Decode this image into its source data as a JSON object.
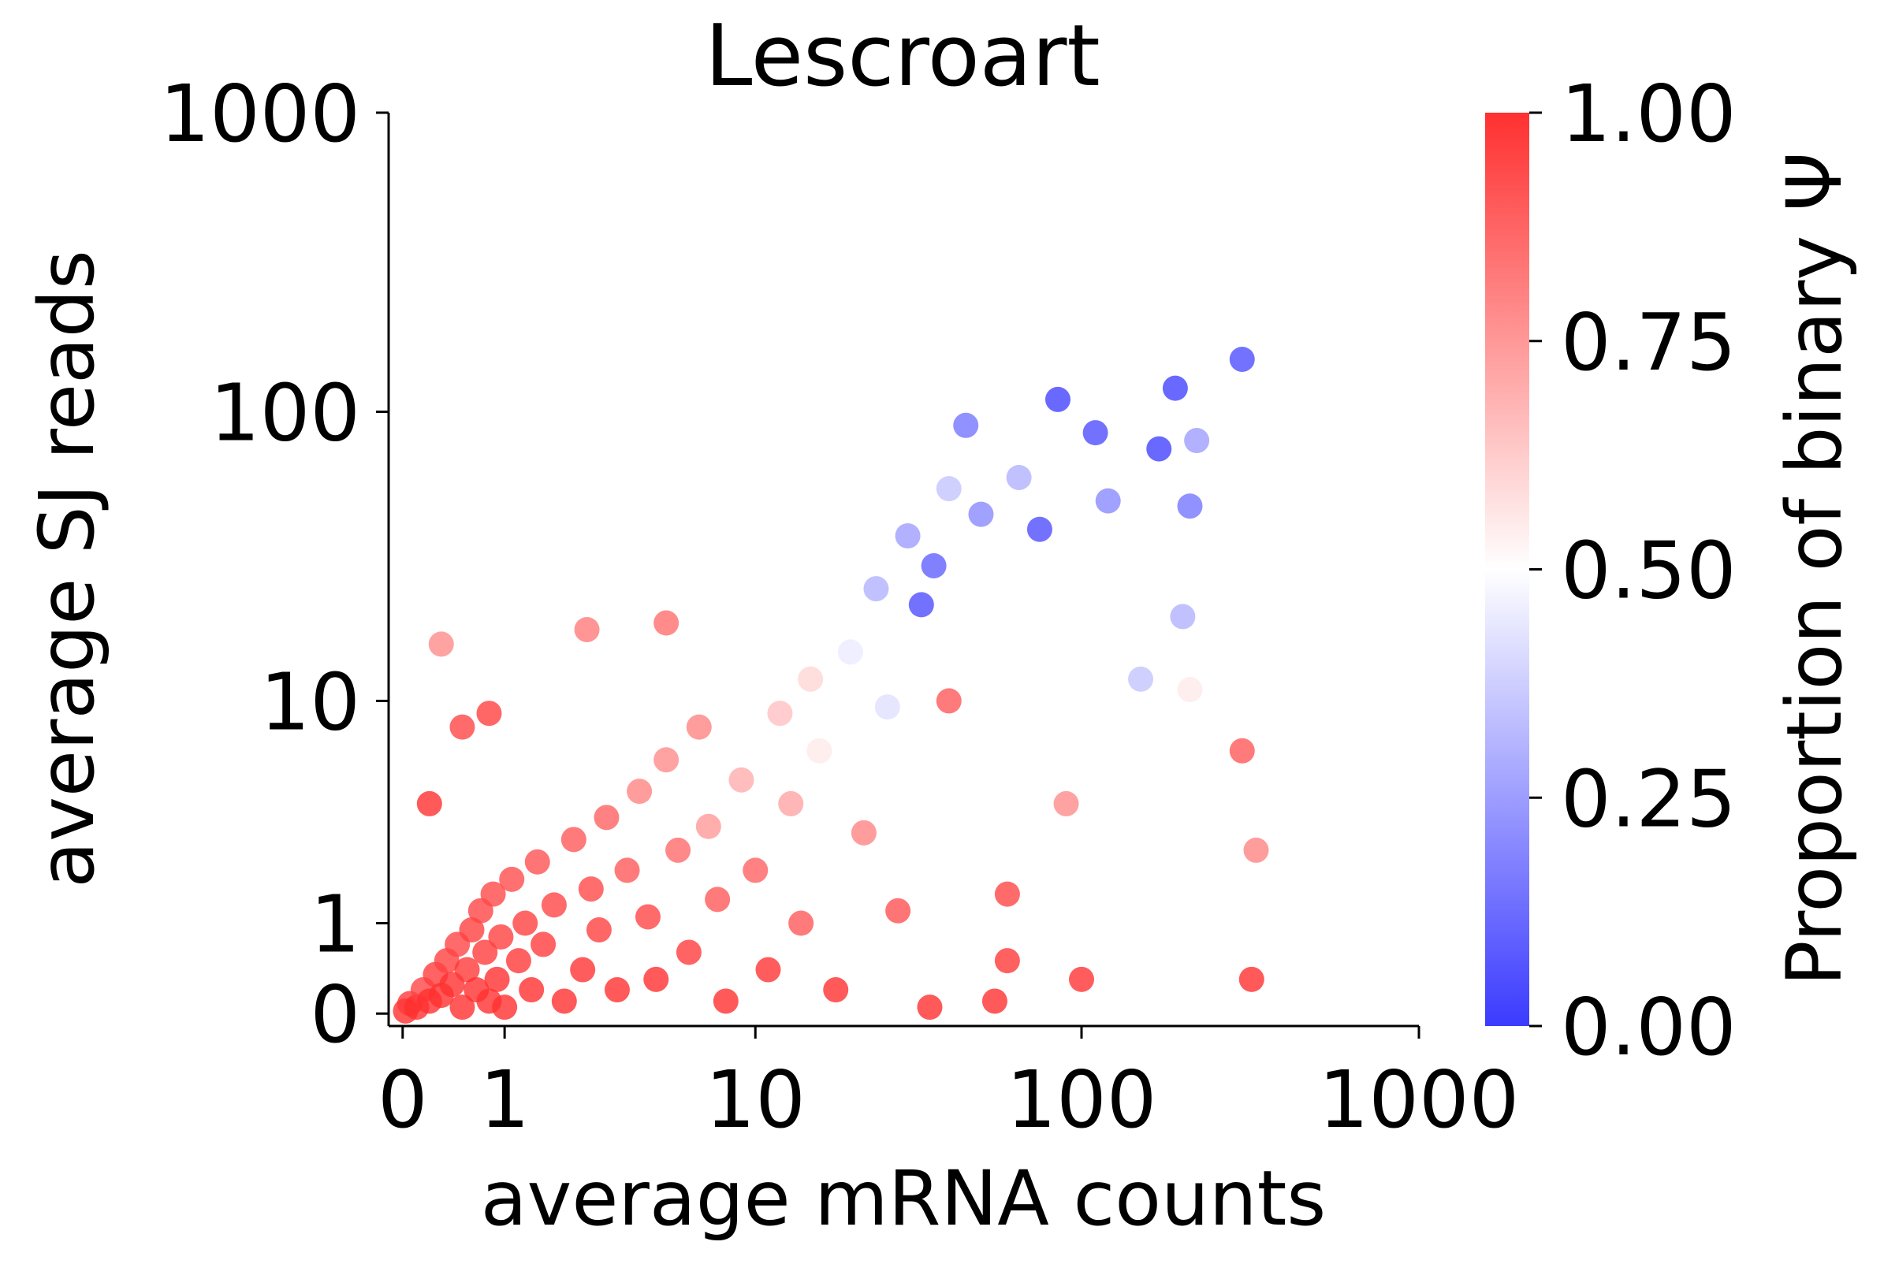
{
  "chart_data": {
    "type": "scatter",
    "title": "Lescroart",
    "xlabel": "average mRNA counts",
    "ylabel": "average SJ reads",
    "x_scale": "symlog",
    "y_scale": "symlog",
    "xlim": [
      -0.1,
      1000
    ],
    "ylim": [
      -0.1,
      1000
    ],
    "x_ticks": [
      0,
      1,
      10,
      100,
      1000
    ],
    "y_ticks": [
      0,
      1,
      10,
      100,
      1000
    ],
    "x_tick_labels": [
      "0",
      "1",
      "10",
      "100",
      "1000"
    ],
    "y_tick_labels": [
      "0",
      "1",
      "10",
      "100",
      "1000"
    ],
    "grid": false,
    "colorbar": {
      "label": "Proportion of binary Ψ",
      "range": [
        0,
        1
      ],
      "ticks": [
        0,
        0.25,
        0.5,
        0.75,
        1.0
      ],
      "tick_labels": [
        "0.00",
        "0.25",
        "0.50",
        "0.75",
        "1.00"
      ],
      "colormap": "bwr",
      "low_color": "#3b3bff",
      "mid_color": "#ffffff",
      "high_color": "#ff3030"
    },
    "points": [
      [
        0.02,
        0.02,
        1.0
      ],
      [
        0.05,
        0.08,
        0.98
      ],
      [
        0.1,
        0.05,
        1.0
      ],
      [
        0.15,
        0.2,
        0.95
      ],
      [
        0.2,
        0.1,
        1.0
      ],
      [
        0.25,
        0.35,
        0.97
      ],
      [
        0.3,
        0.15,
        1.0
      ],
      [
        0.35,
        0.5,
        0.96
      ],
      [
        0.4,
        0.25,
        1.0
      ],
      [
        0.45,
        0.7,
        0.95
      ],
      [
        0.5,
        0.05,
        1.0
      ],
      [
        0.55,
        0.4,
        0.98
      ],
      [
        0.6,
        0.9,
        0.96
      ],
      [
        0.65,
        0.2,
        1.0
      ],
      [
        0.7,
        1.2,
        0.95
      ],
      [
        0.75,
        0.6,
        0.97
      ],
      [
        0.8,
        0.1,
        1.0
      ],
      [
        0.85,
        1.5,
        0.94
      ],
      [
        0.9,
        0.3,
        1.0
      ],
      [
        0.95,
        0.8,
        0.96
      ],
      [
        1.0,
        0.05,
        1.0
      ],
      [
        1.1,
        1.8,
        0.93
      ],
      [
        1.2,
        0.5,
        0.98
      ],
      [
        1.3,
        1.0,
        0.96
      ],
      [
        1.4,
        0.2,
        1.0
      ],
      [
        1.5,
        2.2,
        0.92
      ],
      [
        1.6,
        0.7,
        0.97
      ],
      [
        1.8,
        1.3,
        0.95
      ],
      [
        2.0,
        0.1,
        1.0
      ],
      [
        2.2,
        2.8,
        0.9
      ],
      [
        2.4,
        0.4,
        0.99
      ],
      [
        2.6,
        1.6,
        0.94
      ],
      [
        2.8,
        0.9,
        0.96
      ],
      [
        3.0,
        3.5,
        0.88
      ],
      [
        3.3,
        0.2,
        1.0
      ],
      [
        3.6,
        2.0,
        0.9
      ],
      [
        4.0,
        4.5,
        0.8
      ],
      [
        4.3,
        1.1,
        0.95
      ],
      [
        4.6,
        0.3,
        1.0
      ],
      [
        5.0,
        6.0,
        0.78
      ],
      [
        5.5,
        2.5,
        0.86
      ],
      [
        6.0,
        0.6,
        0.97
      ],
      [
        6.5,
        8.0,
        0.8
      ],
      [
        7.0,
        3.2,
        0.75
      ],
      [
        7.5,
        1.4,
        0.9
      ],
      [
        8.0,
        0.1,
        1.0
      ],
      [
        9.0,
        5.0,
        0.7
      ],
      [
        10.0,
        2.0,
        0.88
      ],
      [
        11.0,
        0.4,
        0.99
      ],
      [
        12.0,
        9.0,
        0.65
      ],
      [
        13.0,
        4.0,
        0.72
      ],
      [
        14.0,
        1.0,
        0.9
      ],
      [
        15.0,
        12.0,
        0.6
      ],
      [
        16.0,
        6.5,
        0.55
      ],
      [
        18.0,
        0.2,
        1.0
      ],
      [
        20.0,
        15.0,
        0.45
      ],
      [
        22.0,
        3.0,
        0.8
      ],
      [
        24.0,
        25.0,
        0.3
      ],
      [
        26.0,
        9.5,
        0.42
      ],
      [
        28.0,
        1.2,
        0.92
      ],
      [
        30.0,
        38.0,
        0.25
      ],
      [
        33.0,
        22.0,
        0.05
      ],
      [
        36.0,
        30.0,
        0.1
      ],
      [
        40.0,
        55.0,
        0.35
      ],
      [
        45.0,
        90.0,
        0.15
      ],
      [
        50.0,
        45.0,
        0.2
      ],
      [
        55.0,
        0.1,
        1.0
      ],
      [
        60.0,
        0.5,
        0.98
      ],
      [
        65.0,
        60.0,
        0.3
      ],
      [
        75.0,
        40.0,
        0.05
      ],
      [
        85.0,
        110.0,
        0.02
      ],
      [
        100.0,
        0.3,
        0.99
      ],
      [
        110.0,
        85.0,
        0.05
      ],
      [
        120.0,
        50.0,
        0.2
      ],
      [
        150.0,
        12.0,
        0.35
      ],
      [
        170.0,
        75.0,
        0.02
      ],
      [
        190.0,
        120.0,
        0.02
      ],
      [
        210.0,
        48.0,
        0.15
      ],
      [
        220.0,
        80.0,
        0.25
      ],
      [
        300.0,
        150.0,
        0.05
      ],
      [
        300.0,
        6.5,
        0.9
      ],
      [
        320.0,
        0.3,
        1.0
      ],
      [
        330.0,
        2.5,
        0.8
      ],
      [
        200.0,
        20.0,
        0.3
      ],
      [
        0.3,
        16.0,
        0.78
      ],
      [
        0.5,
        8.0,
        0.95
      ],
      [
        0.2,
        4.0,
        1.0
      ],
      [
        0.8,
        9.0,
        0.96
      ],
      [
        2.5,
        18.0,
        0.82
      ],
      [
        5.0,
        19.0,
        0.85
      ],
      [
        40.0,
        10.0,
        0.9
      ],
      [
        35.0,
        0.05,
        1.0
      ],
      [
        60.0,
        1.5,
        0.95
      ],
      [
        90.0,
        4.0,
        0.78
      ],
      [
        210.0,
        11.0,
        0.55
      ]
    ]
  }
}
